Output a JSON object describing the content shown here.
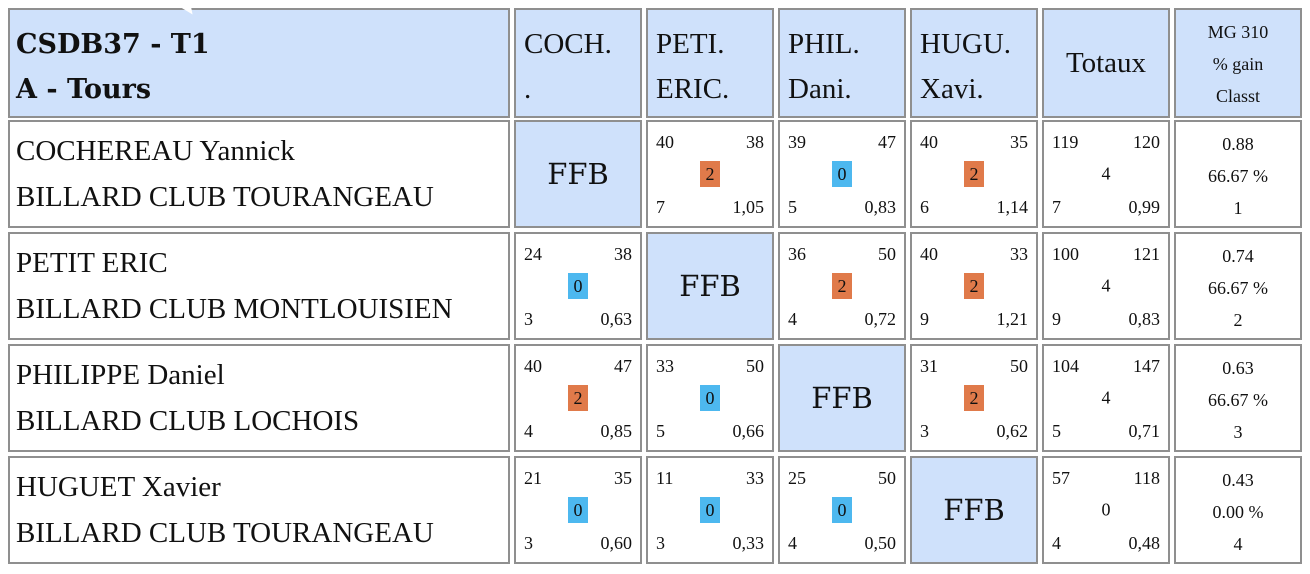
{
  "header": {
    "title_line1": "CSDB37 - T1",
    "title_line2": "A - Tours",
    "columns": [
      {
        "line1": "COCH.",
        "line2": "."
      },
      {
        "line1": "PETI.",
        "line2": "ERIC."
      },
      {
        "line1": "PHIL.",
        "line2": "Dani."
      },
      {
        "line1": "HUGU.",
        "line2": "Xavi."
      }
    ],
    "totaux": "Totaux",
    "mg": {
      "line1": "MG 310",
      "line2": "% gain",
      "line3": "Classt"
    }
  },
  "self_label": "FFB",
  "rows": [
    {
      "name": "COCHEREAU Yannick",
      "club": "BILLARD CLUB TOURANGEAU",
      "results": [
        null,
        {
          "tl": "40",
          "tr": "38",
          "pts": "2",
          "bl": "7",
          "br": "1,05",
          "win": true
        },
        {
          "tl": "39",
          "tr": "47",
          "pts": "0",
          "bl": "5",
          "br": "0,83",
          "win": false
        },
        {
          "tl": "40",
          "tr": "35",
          "pts": "2",
          "bl": "6",
          "br": "1,14",
          "win": true
        }
      ],
      "totals": {
        "tl": "119",
        "tr": "120",
        "pts": "4",
        "bl": "7",
        "br": "0,99"
      },
      "stats": {
        "mg": "0.88",
        "pct": "66.67 %",
        "rank": "1"
      }
    },
    {
      "name": "PETIT ERIC",
      "club": "BILLARD CLUB MONTLOUISIEN",
      "results": [
        {
          "tl": "24",
          "tr": "38",
          "pts": "0",
          "bl": "3",
          "br": "0,63",
          "win": false
        },
        null,
        {
          "tl": "36",
          "tr": "50",
          "pts": "2",
          "bl": "4",
          "br": "0,72",
          "win": true
        },
        {
          "tl": "40",
          "tr": "33",
          "pts": "2",
          "bl": "9",
          "br": "1,21",
          "win": true
        }
      ],
      "totals": {
        "tl": "100",
        "tr": "121",
        "pts": "4",
        "bl": "9",
        "br": "0,83"
      },
      "stats": {
        "mg": "0.74",
        "pct": "66.67 %",
        "rank": "2"
      }
    },
    {
      "name": "PHILIPPE Daniel",
      "club": "BILLARD CLUB LOCHOIS",
      "results": [
        {
          "tl": "40",
          "tr": "47",
          "pts": "2",
          "bl": "4",
          "br": "0,85",
          "win": true
        },
        {
          "tl": "33",
          "tr": "50",
          "pts": "0",
          "bl": "5",
          "br": "0,66",
          "win": false
        },
        null,
        {
          "tl": "31",
          "tr": "50",
          "pts": "2",
          "bl": "3",
          "br": "0,62",
          "win": true
        }
      ],
      "totals": {
        "tl": "104",
        "tr": "147",
        "pts": "4",
        "bl": "5",
        "br": "0,71"
      },
      "stats": {
        "mg": "0.63",
        "pct": "66.67 %",
        "rank": "3"
      }
    },
    {
      "name": "HUGUET Xavier",
      "club": "BILLARD CLUB TOURANGEAU",
      "results": [
        {
          "tl": "21",
          "tr": "35",
          "pts": "0",
          "bl": "3",
          "br": "0,60",
          "win": false
        },
        {
          "tl": "11",
          "tr": "33",
          "pts": "0",
          "bl": "3",
          "br": "0,33",
          "win": false
        },
        {
          "tl": "25",
          "tr": "50",
          "pts": "0",
          "bl": "4",
          "br": "0,50",
          "win": false
        },
        null
      ],
      "totals": {
        "tl": "57",
        "tr": "118",
        "pts": "0",
        "bl": "4",
        "br": "0,48"
      },
      "stats": {
        "mg": "0.43",
        "pct": "0.00 %",
        "rank": "4"
      }
    }
  ],
  "colors": {
    "header_bg": "#cfe1fb",
    "win_badge": "#e07a4a",
    "loss_badge": "#4db8ef",
    "border": "#8f8f8f"
  }
}
